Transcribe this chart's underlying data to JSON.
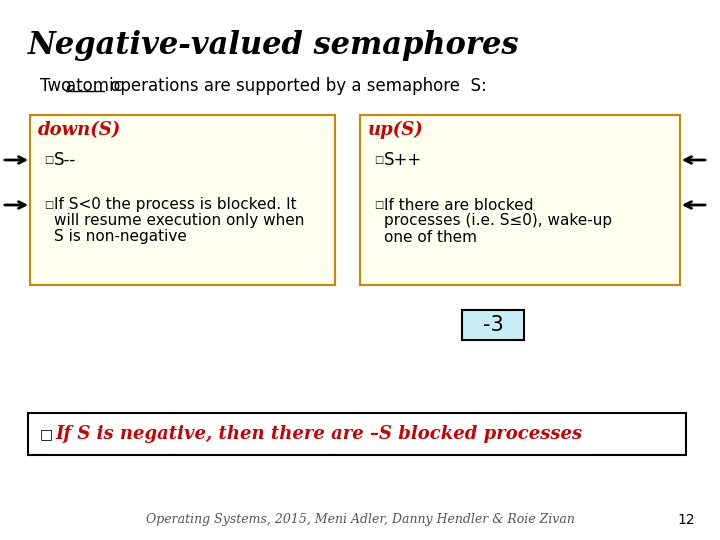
{
  "title": "Negative-valued semaphores",
  "bg_color": "#ffffff",
  "title_color": "#000000",
  "box_left_title": "down(S)",
  "box_left_item1": "S--",
  "box_left_item2_l1": "If S<0 the process is blocked. It",
  "box_left_item2_l2": "will resume execution only when",
  "box_left_item2_l3": "S is non-negative",
  "box_right_title": "up(S)",
  "box_right_item1": "S++",
  "box_right_item2_l1": "If there are blocked",
  "box_right_item2_l2": "processes (i.e. S≤0), wake-up",
  "box_right_item2_l3": "one of them",
  "box_bg": "#fffff0",
  "box_border": "#cc8800",
  "box_title_color": "#cc0000",
  "semaphore_value": "-3",
  "semaphore_box_bg": "#c8eef5",
  "semaphore_box_border": "#000000",
  "bottom_text": "If S is negative, then there are –S blocked processes",
  "bottom_text_color": "#cc0000",
  "bottom_box_border": "#000000",
  "bottom_box_bg": "#ffffff",
  "footer": "Operating Systems, 2015, Meni Adler, Danny Hendler & Roie Zivan",
  "page_num": "12",
  "sub_two": "Two ",
  "sub_atomic": "atomic",
  "sub_rest": " operations are supported by a semaphore  S:"
}
